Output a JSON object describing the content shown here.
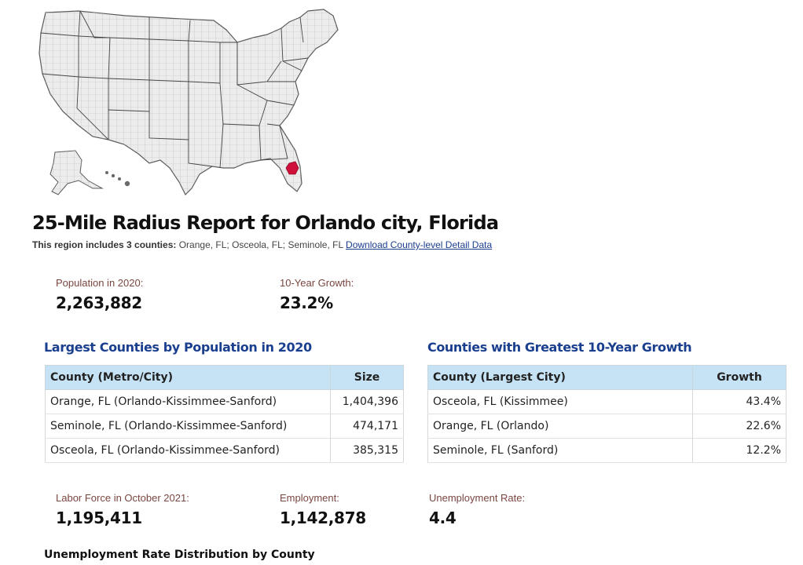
{
  "report": {
    "title": "25-Mile Radius Report for Orlando city, Florida",
    "region_lead": "This region includes 3 counties:",
    "region_counties": "Orange, FL; Osceola, FL; Seminole, FL",
    "download_link": "Download County-level Detail Data"
  },
  "map": {
    "highlight_color": "#d0103a",
    "highlight_region": "Orlando, FL area"
  },
  "stats_top": [
    {
      "label": "Population in 2020:",
      "value": "2,263,882"
    },
    {
      "label": "10-Year Growth:",
      "value": "23.2%"
    }
  ],
  "largest_counties": {
    "title": "Largest Counties by Population in 2020",
    "headers": [
      "County (Metro/City)",
      "Size"
    ],
    "rows": [
      {
        "county": "Orange, FL (Orlando-Kissimmee-Sanford)",
        "value": "1,404,396"
      },
      {
        "county": "Seminole, FL (Orlando-Kissimmee-Sanford)",
        "value": "474,171"
      },
      {
        "county": "Osceola, FL (Orlando-Kissimmee-Sanford)",
        "value": "385,315"
      }
    ]
  },
  "growth_counties": {
    "title": "Counties with Greatest 10-Year Growth",
    "headers": [
      "County (Largest City)",
      "Growth"
    ],
    "rows": [
      {
        "county": "Osceola, FL (Kissimmee)",
        "value": "43.4%"
      },
      {
        "county": "Orange, FL (Orlando)",
        "value": "22.6%"
      },
      {
        "county": "Seminole, FL (Sanford)",
        "value": "12.2%"
      }
    ]
  },
  "stats_bottom": [
    {
      "label": "Labor Force in October 2021:",
      "value": "1,195,411"
    },
    {
      "label": "Employment:",
      "value": "1,142,878"
    },
    {
      "label": "Unemployment Rate:",
      "value": "4.4"
    }
  ],
  "distribution_title": "Unemployment Rate Distribution by County",
  "colors": {
    "section_title": "#1b3f8f",
    "table_header": "#c6e3f5",
    "stat_label": "#7a4640",
    "link": "#1a3d8f"
  }
}
